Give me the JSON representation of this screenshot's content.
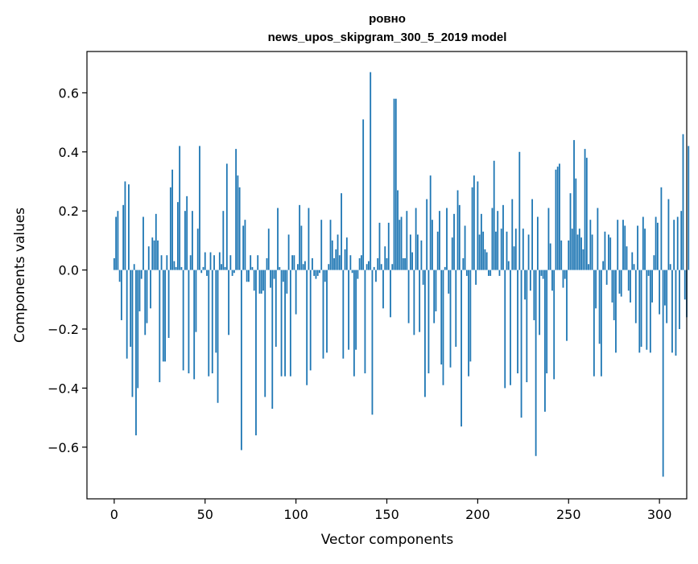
{
  "chart_data": {
    "type": "bar",
    "title_line1": "ровно",
    "title_line2": "news_upos_skipgram_300_5_2019 model",
    "xlabel": "Vector components",
    "ylabel": "Components values",
    "xlim": [
      -15,
      315
    ],
    "ylim": [
      -0.775,
      0.74
    ],
    "xticks": [
      0,
      50,
      100,
      150,
      200,
      250,
      300
    ],
    "xtick_labels": [
      "0",
      "50",
      "100",
      "150",
      "200",
      "250",
      "300"
    ],
    "yticks": [
      -0.6,
      -0.4,
      -0.2,
      0.0,
      0.2,
      0.4,
      0.6
    ],
    "ytick_labels": [
      "−0.6",
      "−0.4",
      "−0.2",
      "0.0",
      "0.2",
      "0.4",
      "0.6"
    ],
    "bar_color": "#1f77b4",
    "grid": false,
    "legend": "none",
    "values": [
      0.04,
      0.18,
      0.2,
      -0.04,
      -0.17,
      0.22,
      0.3,
      -0.3,
      0.29,
      -0.26,
      -0.43,
      0.02,
      -0.56,
      -0.4,
      -0.14,
      -0.03,
      0.18,
      -0.22,
      -0.18,
      0.08,
      -0.13,
      0.11,
      0.1,
      0.19,
      0.1,
      -0.38,
      0.05,
      -0.31,
      -0.31,
      0.05,
      -0.23,
      0.28,
      0.34,
      0.03,
      0.01,
      0.23,
      0.42,
      0.01,
      -0.34,
      0.2,
      0.25,
      -0.35,
      0.05,
      0.2,
      -0.37,
      -0.21,
      0.14,
      0.42,
      -0.01,
      0.01,
      0.06,
      -0.02,
      -0.36,
      0.06,
      -0.35,
      0.05,
      -0.28,
      -0.45,
      0.06,
      0.02,
      0.2,
      0.01,
      0.36,
      -0.22,
      0.05,
      -0.02,
      -0.01,
      0.41,
      0.32,
      0.28,
      -0.61,
      0.15,
      0.17,
      -0.04,
      -0.04,
      0.05,
      0.01,
      -0.07,
      -0.56,
      0.05,
      -0.08,
      -0.08,
      -0.07,
      -0.43,
      0.04,
      0.14,
      -0.06,
      -0.47,
      -0.03,
      -0.26,
      0.21,
      0.01,
      -0.36,
      -0.04,
      -0.36,
      -0.08,
      0.12,
      -0.36,
      0.05,
      0.05,
      -0.15,
      0.02,
      0.22,
      0.15,
      0.02,
      0.03,
      -0.39,
      0.21,
      -0.34,
      0.04,
      -0.02,
      -0.03,
      -0.02,
      -0.01,
      0.17,
      -0.3,
      -0.04,
      -0.28,
      0.02,
      0.17,
      0.1,
      0.04,
      0.07,
      0.12,
      0.05,
      0.26,
      -0.3,
      0.07,
      0.11,
      -0.27,
      0.05,
      -0.01,
      -0.36,
      -0.27,
      -0.03,
      0.04,
      0.05,
      0.51,
      -0.35,
      0.02,
      0.03,
      0.67,
      -0.49,
      0.01,
      -0.04,
      0.04,
      0.16,
      0.02,
      -0.13,
      0.08,
      0.04,
      0.16,
      -0.16,
      0.02,
      0.58,
      0.58,
      0.27,
      0.17,
      0.18,
      0.04,
      0.04,
      0.2,
      -0.18,
      0.12,
      0.06,
      -0.22,
      0.21,
      0.12,
      -0.21,
      0.1,
      -0.05,
      -0.43,
      0.24,
      -0.35,
      0.32,
      0.17,
      -0.18,
      -0.14,
      0.13,
      0.2,
      -0.32,
      -0.39,
      0.01,
      0.21,
      -0.08,
      -0.33,
      0.11,
      0.19,
      -0.26,
      0.27,
      0.22,
      -0.53,
      0.04,
      0.15,
      -0.02,
      -0.36,
      -0.31,
      0.28,
      0.32,
      -0.05,
      0.3,
      0.12,
      0.19,
      0.13,
      0.07,
      0.06,
      -0.02,
      -0.02,
      0.21,
      0.37,
      0.13,
      0.2,
      -0.02,
      0.14,
      0.22,
      -0.4,
      0.13,
      0.03,
      -0.39,
      0.24,
      0.08,
      0.14,
      -0.35,
      0.4,
      -0.5,
      0.14,
      -0.1,
      -0.38,
      0.12,
      -0.07,
      0.24,
      -0.17,
      -0.63,
      0.18,
      -0.22,
      -0.02,
      -0.03,
      -0.48,
      -0.35,
      0.21,
      0.09,
      -0.07,
      -0.37,
      0.34,
      0.35,
      0.36,
      0.1,
      -0.06,
      -0.03,
      -0.24,
      0.1,
      0.26,
      0.14,
      0.44,
      0.31,
      0.12,
      0.14,
      0.11,
      0.07,
      0.41,
      0.38,
      0.02,
      0.17,
      0.12,
      -0.36,
      -0.13,
      0.21,
      -0.25,
      -0.36,
      0.03,
      0.13,
      -0.05,
      0.12,
      0.11,
      -0.11,
      -0.17,
      -0.28,
      0.17,
      -0.08,
      -0.09,
      0.17,
      0.15,
      0.08,
      -0.07,
      -0.11,
      0.06,
      0.02,
      -0.18,
      0.15,
      -0.28,
      -0.26,
      0.18,
      0.14,
      -0.27,
      -0.02,
      -0.28,
      -0.11,
      0.05,
      0.18,
      0.16,
      -0.15,
      0.28,
      -0.7,
      -0.12,
      -0.18,
      0.24,
      0.02,
      -0.28,
      0.17,
      -0.29,
      0.18,
      -0.2,
      0.2,
      0.46,
      -0.1,
      -0.16,
      0.42
    ]
  }
}
